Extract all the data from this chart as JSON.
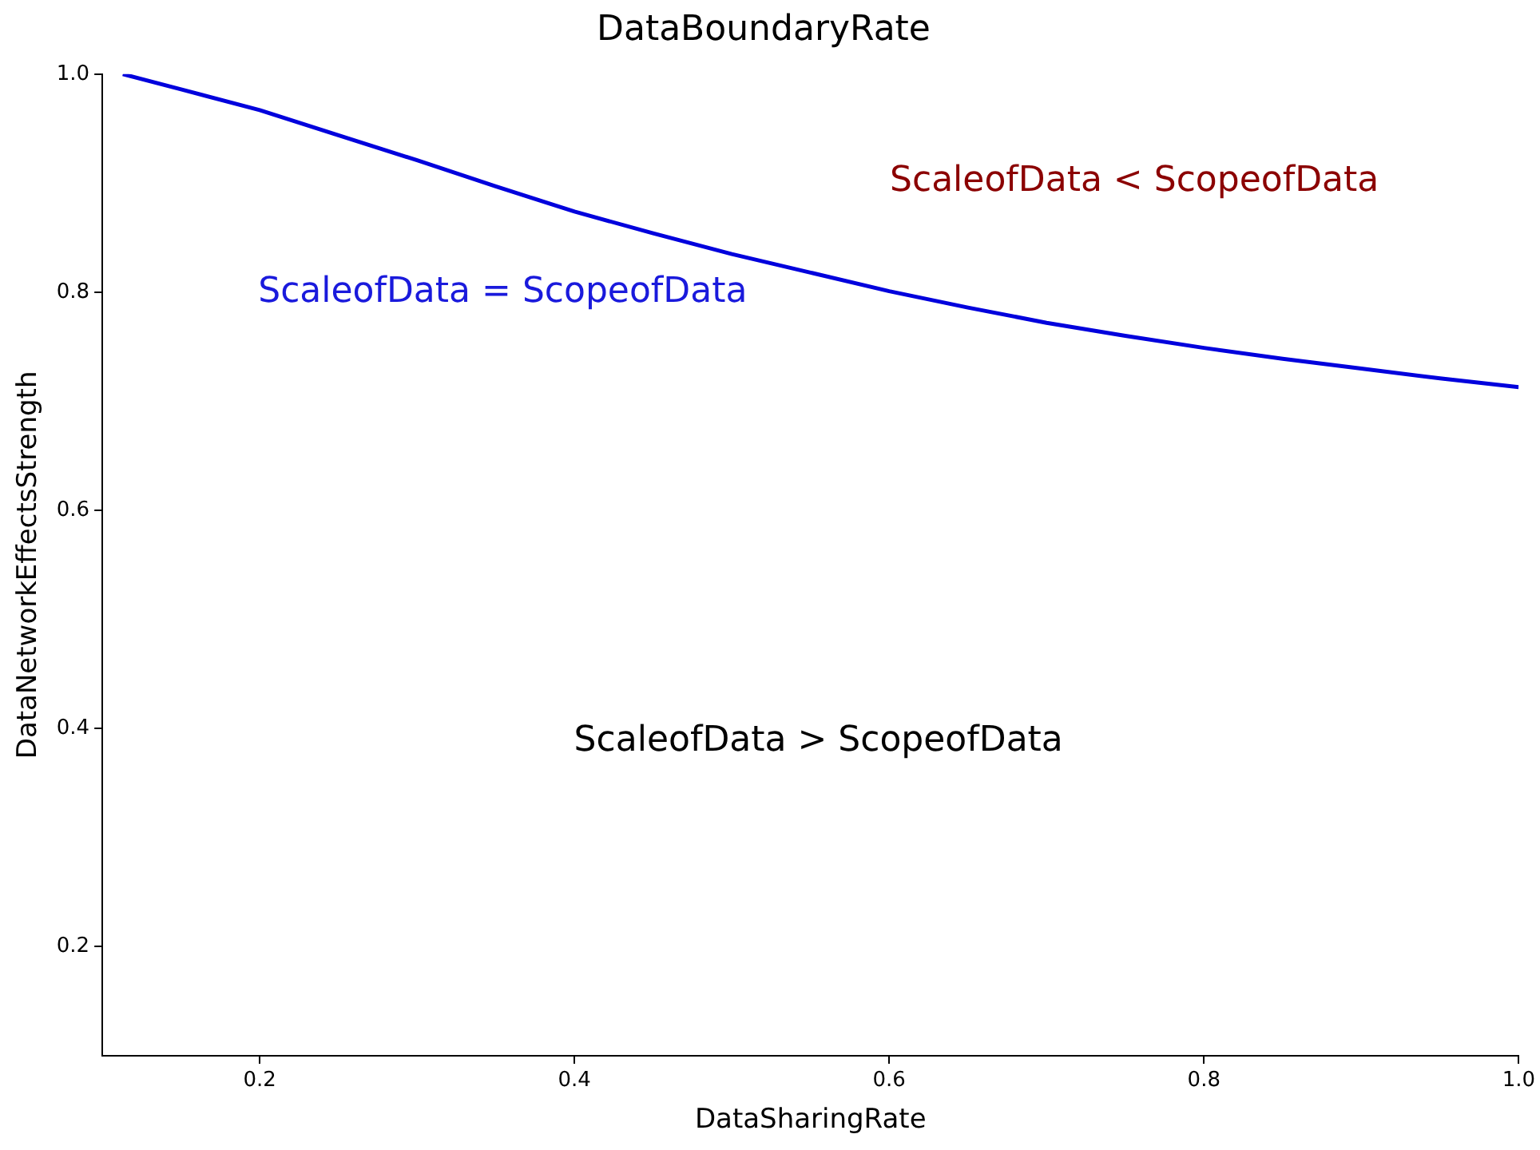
{
  "chart_data": {
    "type": "line",
    "title": "DataBoundaryRate",
    "xlabel": "DataSharingRate",
    "ylabel": "DataNetworkEffectsStrength",
    "x": [
      0.113,
      0.15,
      0.2,
      0.25,
      0.3,
      0.35,
      0.4,
      0.45,
      0.5,
      0.55,
      0.6,
      0.65,
      0.7,
      0.75,
      0.8,
      0.85,
      0.9,
      0.95,
      1.0
    ],
    "series": [
      {
        "color": "#0000dd",
        "values": [
          1.0,
          0.986,
          0.967,
          0.944,
          0.921,
          0.897,
          0.874,
          0.854,
          0.835,
          0.818,
          0.801,
          0.786,
          0.772,
          0.76,
          0.749,
          0.739,
          0.73,
          0.721,
          0.713
        ]
      }
    ],
    "xlim": [
      0.1,
      1.0
    ],
    "ylim": [
      0.1,
      1.0
    ],
    "xticks": [
      0.2,
      0.4,
      0.6,
      0.8,
      {
        "value": 1,
        "label": "1.0"
      }
    ],
    "yticks": [
      0.2,
      0.4,
      0.6,
      0.8,
      {
        "value": 1,
        "label": "1.0"
      }
    ],
    "grid": false,
    "legend": false,
    "marker": "none",
    "line_style": "solid",
    "annotations": [
      "ScaleofData = ScopeofData",
      "ScaleofData < ScopeofData",
      "ScaleofData > ScopeofData"
    ]
  }
}
